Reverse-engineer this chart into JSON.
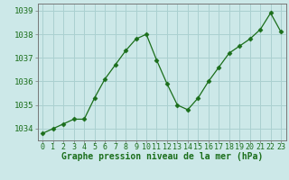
{
  "x": [
    0,
    1,
    2,
    3,
    4,
    5,
    6,
    7,
    8,
    9,
    10,
    11,
    12,
    13,
    14,
    15,
    16,
    17,
    18,
    19,
    20,
    21,
    22,
    23
  ],
  "y": [
    1033.8,
    1034.0,
    1034.2,
    1034.4,
    1034.4,
    1035.3,
    1036.1,
    1036.7,
    1037.3,
    1037.8,
    1038.0,
    1036.9,
    1035.9,
    1035.0,
    1034.8,
    1035.3,
    1036.0,
    1036.6,
    1037.2,
    1037.5,
    1037.8,
    1038.2,
    1038.9,
    1038.1
  ],
  "line_color": "#1a6e1a",
  "marker": "D",
  "marker_size": 2.5,
  "bg_color": "#cce8e8",
  "grid_color": "#aad0d0",
  "text_color": "#1a6e1a",
  "ylim": [
    1033.5,
    1039.3
  ],
  "xlim": [
    -0.5,
    23.5
  ],
  "yticks": [
    1034,
    1035,
    1036,
    1037,
    1038,
    1039
  ],
  "xtick_labels": [
    "0",
    "1",
    "2",
    "3",
    "4",
    "5",
    "6",
    "7",
    "8",
    "9",
    "10",
    "11",
    "12",
    "13",
    "14",
    "15",
    "16",
    "17",
    "18",
    "19",
    "20",
    "21",
    "22",
    "23"
  ],
  "xlabel": "Graphe pression niveau de la mer (hPa)",
  "xlabel_fontsize": 7.0,
  "ytick_fontsize": 6.5,
  "xtick_fontsize": 6.0
}
